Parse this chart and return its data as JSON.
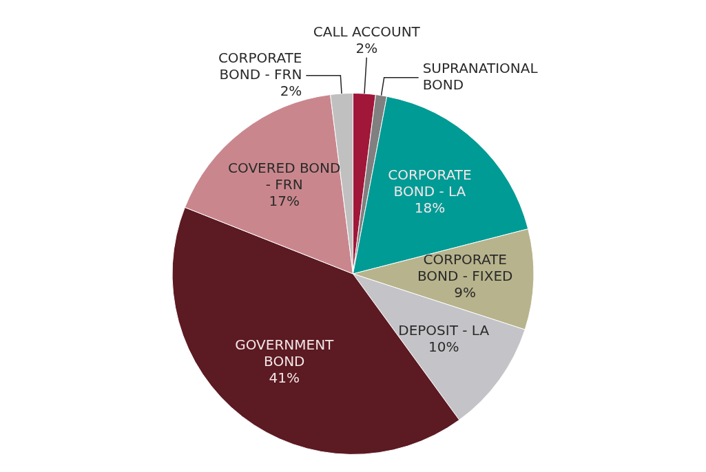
{
  "chart_data": {
    "type": "pie",
    "categories": [
      "CALL ACCOUNT",
      "SUPRANATIONAL BOND",
      "CORPORATE BOND - LA",
      "CORPORATE BOND - FIXED",
      "DEPOSIT - LA",
      "GOVERNMENT BOND",
      "COVERED BOND - FRN",
      "CORPORATE BOND - FRN"
    ],
    "values": [
      2,
      1,
      18,
      9,
      10,
      41,
      17,
      2
    ],
    "value_labels": [
      "2%",
      null,
      "18%",
      "9%",
      "10%",
      "41%",
      "17%",
      "2%"
    ],
    "colors": [
      "#a0173a",
      "#808080",
      "#009b95",
      "#b7b38c",
      "#c4c4c8",
      "#5c1a22",
      "#c9878d",
      "#c0c0c0"
    ]
  }
}
